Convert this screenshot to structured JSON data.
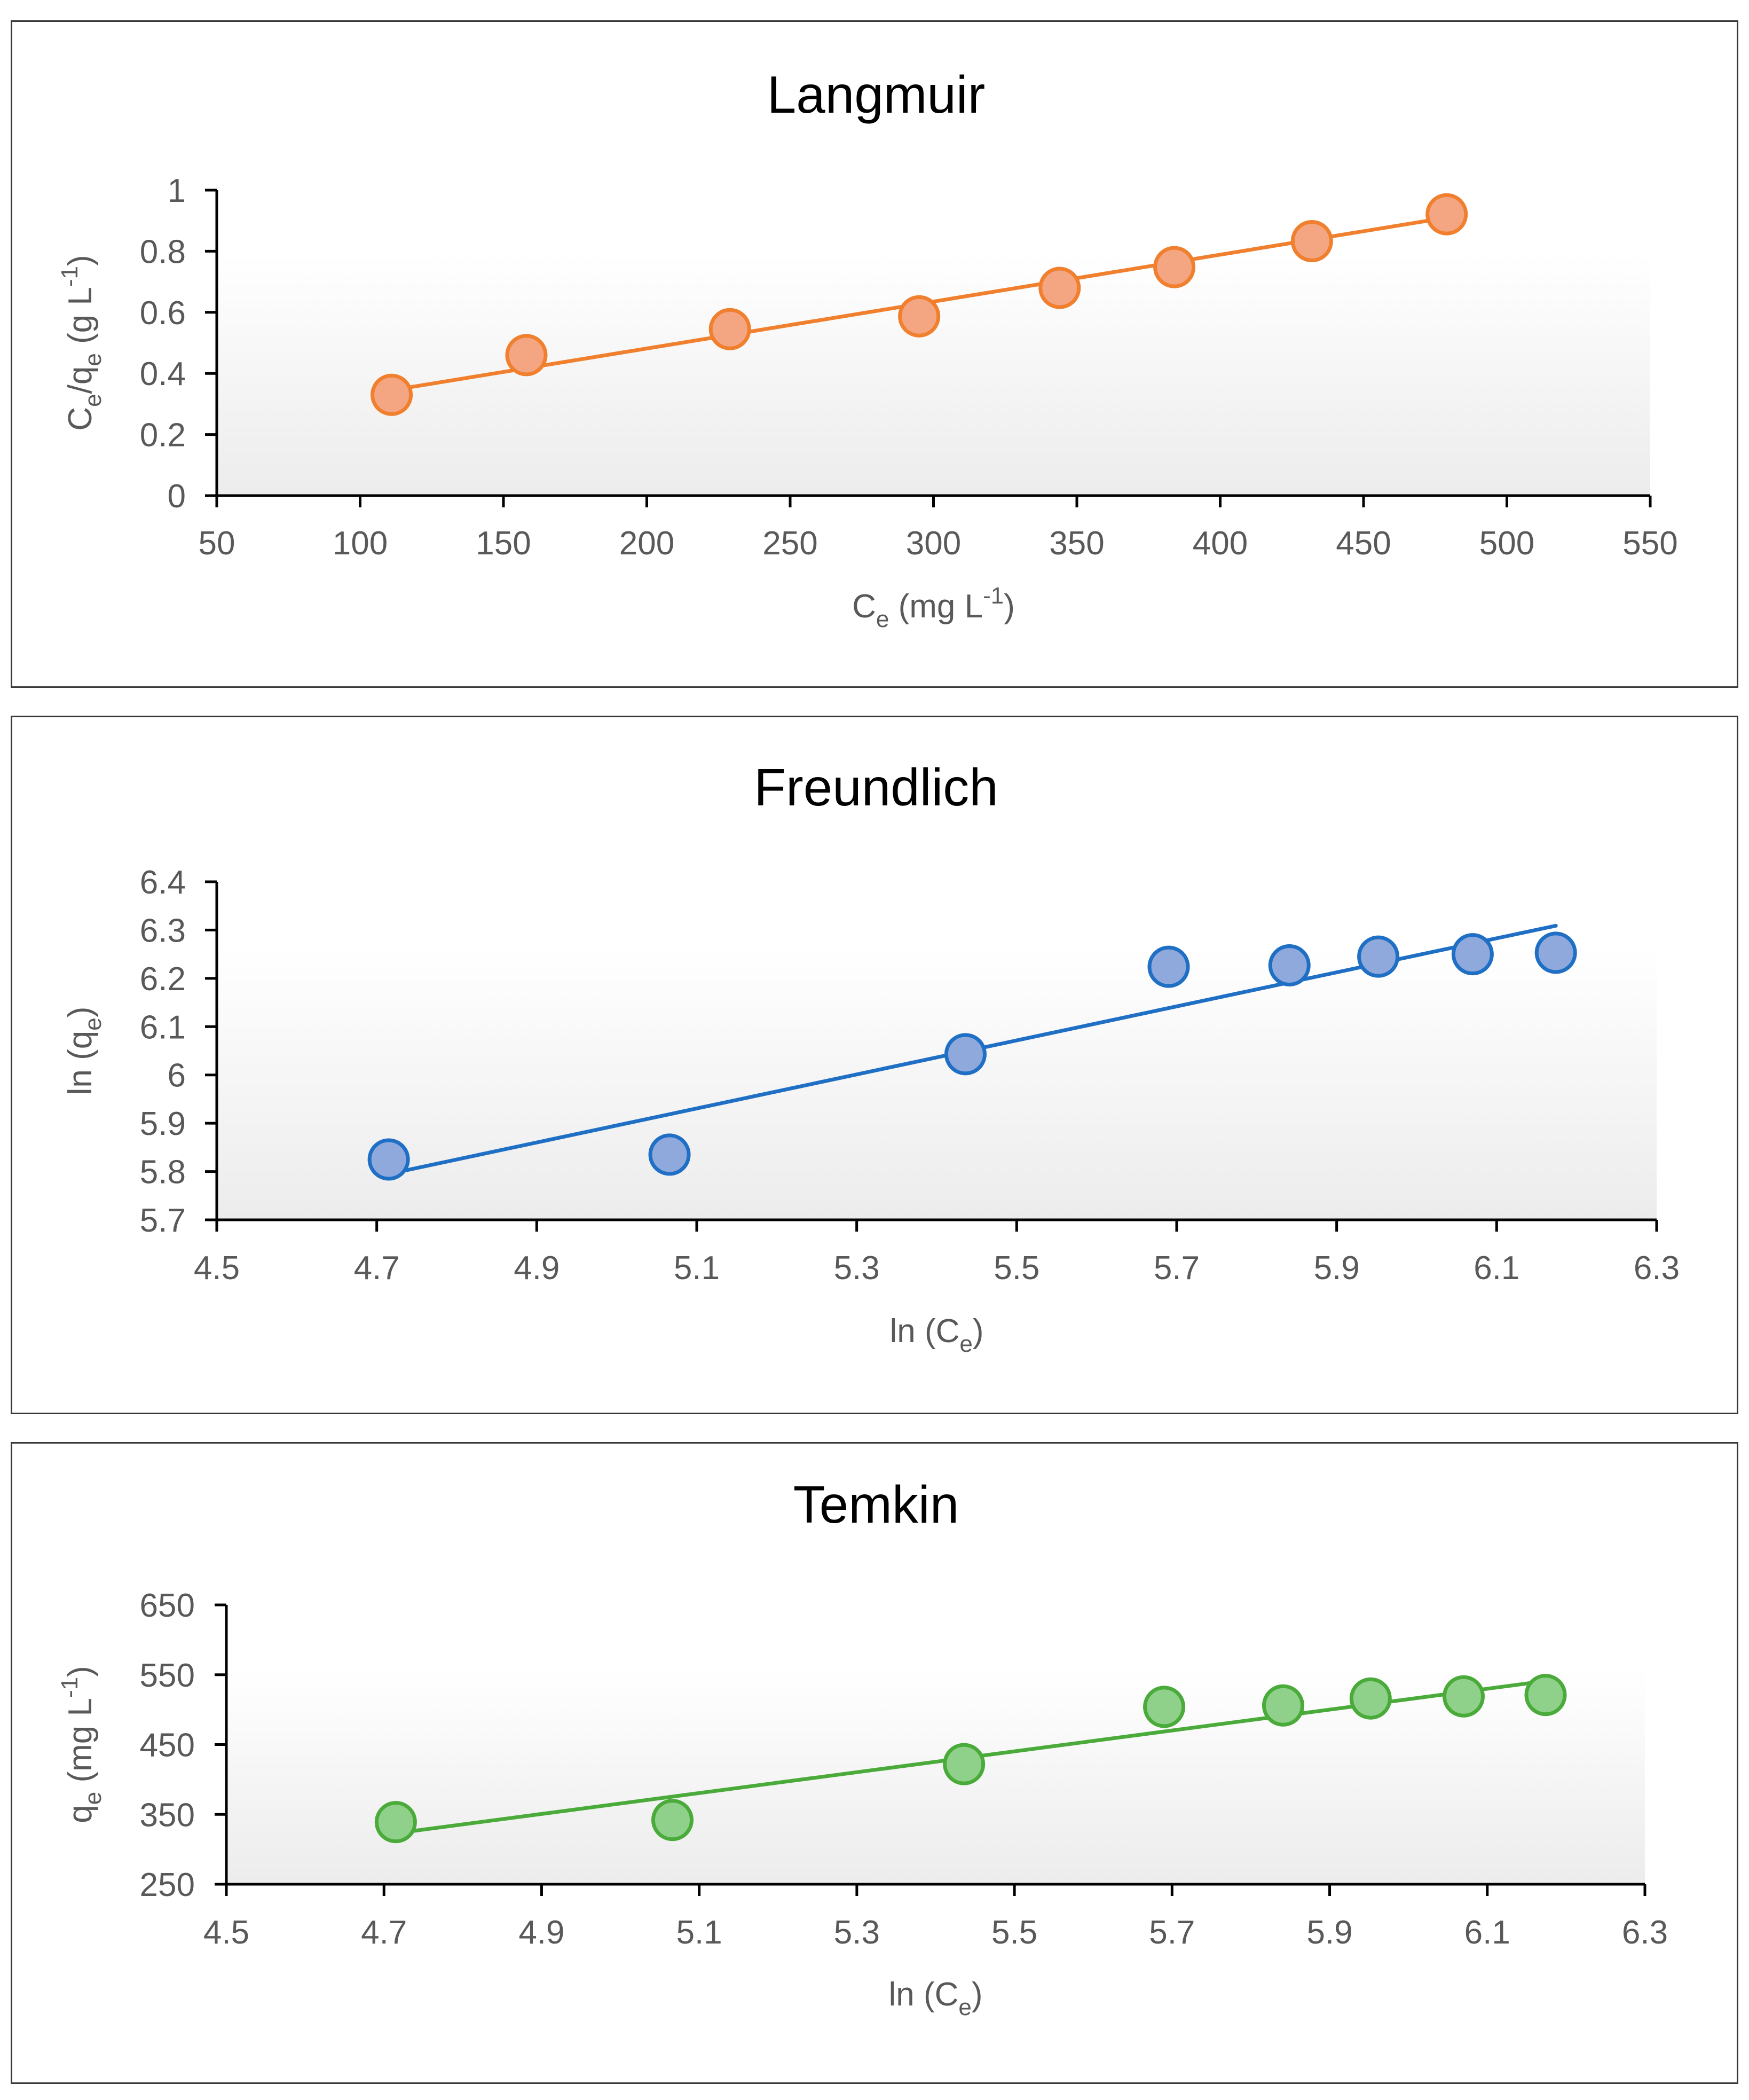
{
  "figure": {
    "panels": [
      "Langmuir",
      "Freundlich",
      "Temkin"
    ]
  },
  "chart_data": [
    {
      "type": "scatter",
      "title": "Langmuir",
      "xlabel": {
        "main": "C",
        "sub": "e",
        "unit_pre": " (mg L",
        "sup": "-1",
        "unit_post": ")"
      },
      "ylabel": {
        "p1": "C",
        "s1": "e",
        "p2": "/q",
        "s2": "e",
        "p3": " (g L",
        "sup": "-1",
        "p4": ")"
      },
      "xlim": [
        50,
        550
      ],
      "ylim": [
        0,
        1
      ],
      "xticks": [
        "50",
        "100",
        "150",
        "200",
        "250",
        "300",
        "350",
        "400",
        "450",
        "500",
        "550"
      ],
      "yticks": [
        "0",
        "0.2",
        "0.4",
        "0.6",
        "0.8",
        "1"
      ],
      "x": [
        111,
        158,
        229,
        295,
        344,
        384,
        432,
        479
      ],
      "y": [
        0.33,
        0.46,
        0.545,
        0.587,
        0.68,
        0.748,
        0.833,
        0.921
      ],
      "trendline": {
        "x": [
          111,
          479
        ],
        "y": [
          0.345,
          0.91
        ]
      },
      "colors": {
        "marker_fill": "#f4a582",
        "marker_edge": "#f07f2e",
        "line": "#f07f2e"
      },
      "grid": false,
      "legend": "none"
    },
    {
      "type": "scatter",
      "title": "Freundlich",
      "xlabel": {
        "main": "ln (C",
        "sub": "e",
        "unit_pre": ")",
        "sup": "",
        "unit_post": ""
      },
      "ylabel": {
        "p1": "ln (q",
        "s1": "e",
        "p2": ")",
        "s2": "",
        "p3": "",
        "sup": "",
        "p4": ""
      },
      "xlim": [
        4.5,
        6.3
      ],
      "ylim": [
        5.7,
        6.4
      ],
      "xticks": [
        "4.5",
        "4.7",
        "4.9",
        "5.1",
        "5.3",
        "5.5",
        "5.7",
        "5.9",
        "6.1",
        "6.3"
      ],
      "yticks": [
        "5.7",
        "5.8",
        "5.9",
        "6",
        "6.1",
        "6.2",
        "6.3",
        "6.4"
      ],
      "x": [
        4.715,
        5.066,
        5.436,
        5.69,
        5.841,
        5.952,
        6.07,
        6.174
      ],
      "y": [
        5.825,
        5.835,
        6.043,
        6.224,
        6.227,
        6.245,
        6.25,
        6.253
      ],
      "trendline": {
        "x": [
          4.715,
          6.174
        ],
        "y": [
          5.795,
          6.309
        ]
      },
      "colors": {
        "marker_fill": "#8fa9dc",
        "marker_edge": "#1f6fc5",
        "line": "#1f6fc5"
      },
      "grid": false,
      "legend": "none"
    },
    {
      "type": "scatter",
      "title": "Temkin",
      "xlabel": {
        "main": "ln (C",
        "sub": "e",
        "unit_pre": ")",
        "sup": "",
        "unit_post": ""
      },
      "ylabel": {
        "p1": "q",
        "s1": "e",
        "p2": " (mg L",
        "s2": "",
        "p3": "",
        "sup": "-1",
        "p4": ")"
      },
      "xlim": [
        4.5,
        6.3
      ],
      "ylim": [
        250,
        650
      ],
      "xticks": [
        "4.5",
        "4.7",
        "4.9",
        "5.1",
        "5.3",
        "5.5",
        "5.7",
        "5.9",
        "6.1",
        "6.3"
      ],
      "yticks": [
        "250",
        "350",
        "450",
        "550",
        "650"
      ],
      "x": [
        4.715,
        5.066,
        5.436,
        5.69,
        5.841,
        5.952,
        6.07,
        6.174
      ],
      "y": [
        339,
        342,
        422,
        504,
        506,
        516,
        519,
        521
      ],
      "trendline": {
        "x": [
          4.715,
          6.174
        ],
        "y": [
          323,
          541
        ]
      },
      "colors": {
        "marker_fill": "#8fd18a",
        "marker_edge": "#4aab3a",
        "line": "#4aab3a"
      },
      "grid": false,
      "legend": "none"
    }
  ]
}
